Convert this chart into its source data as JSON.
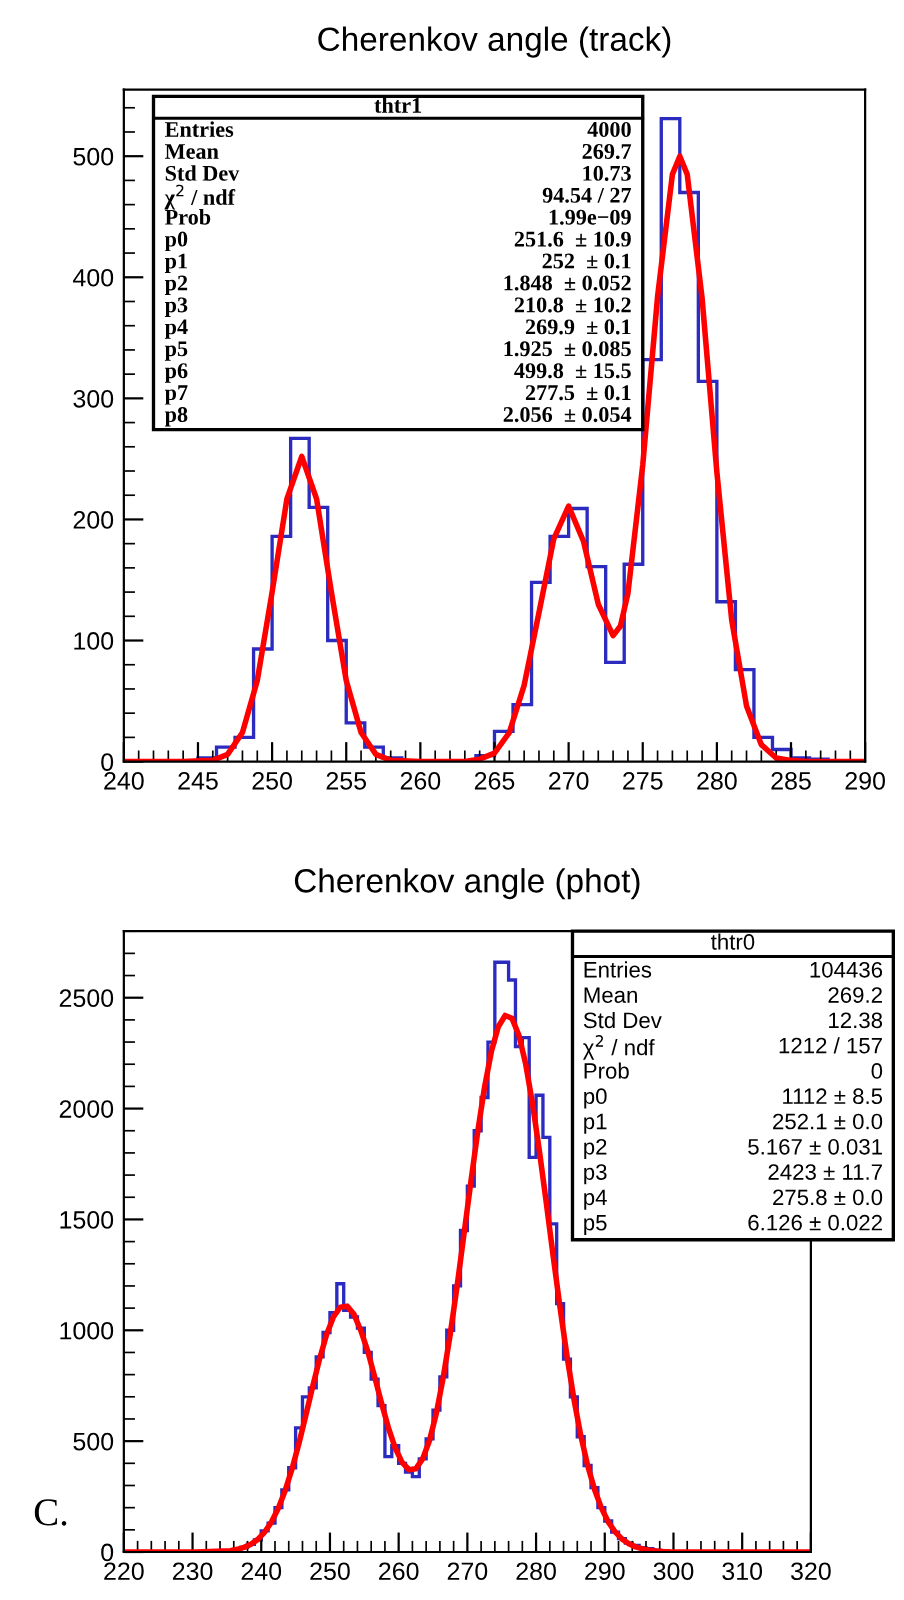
{
  "chart_data": [
    {
      "type": "histogram",
      "title": "Cherenkov angle (track)",
      "color": "#2b2bc0",
      "bins": [
        240,
        241.25,
        242.5,
        243.75,
        245,
        246.25,
        247.5,
        248.75,
        250,
        251.25,
        252.5,
        253.75,
        255,
        256.25,
        257.5,
        258.75,
        260,
        261.25,
        262.5,
        263.75,
        265,
        266.25,
        267.5,
        268.75,
        270,
        271.25,
        272.5,
        273.75,
        275,
        276.25,
        277.5,
        278.75,
        280,
        281.25,
        282.5,
        283.75,
        285,
        286.25,
        287.5,
        288.75,
        290
      ],
      "values": [
        0,
        0,
        0,
        0,
        3,
        12,
        20,
        93,
        186,
        267,
        210,
        100,
        32,
        12,
        3,
        0,
        0,
        0,
        0,
        5,
        25,
        47,
        148,
        186,
        209,
        161,
        82,
        163,
        332,
        531,
        470,
        314,
        132,
        76,
        20,
        10,
        3,
        2,
        0,
        0
      ],
      "series": [
        {
          "type": "line",
          "color": "#ff0000",
          "x": [
            240,
            244,
            246,
            247,
            248,
            249,
            250,
            251,
            252,
            253,
            254,
            255,
            256,
            257,
            258,
            260,
            262,
            263,
            264,
            265,
            266,
            267,
            268,
            269,
            270,
            271,
            272,
            273,
            273.5,
            274,
            275,
            276,
            277,
            277.5,
            278,
            279,
            280,
            281,
            282,
            283,
            284,
            285,
            286,
            290
          ],
          "values": [
            0,
            0,
            1,
            6,
            24,
            67,
            140,
            217,
            252,
            217,
            140,
            67,
            24,
            6,
            1,
            0,
            0,
            0,
            2,
            7,
            24,
            63,
            123,
            184,
            211,
            182,
            130,
            104,
            112,
            139,
            245,
            384,
            485,
            500,
            485,
            383,
            239,
            117,
            46,
            14,
            3,
            1,
            0,
            0
          ]
        }
      ],
      "xlim": [
        240,
        290
      ],
      "xticks": [
        240,
        245,
        250,
        255,
        260,
        265,
        270,
        275,
        280,
        285,
        290
      ],
      "ylim": [
        0,
        555
      ],
      "yticks": [
        0,
        100,
        200,
        300,
        400,
        500
      ],
      "annotations": [
        "thtr1",
        "Entries",
        "4000",
        "Mean",
        "269.7",
        "Std Dev",
        "10.73",
        "χ$^{2}$ / ndf",
        "94.54 / 27",
        "Prob",
        "1.99e−09",
        "p0",
        "251.6  ± 10.9",
        "p1",
        "252  ± 0.1",
        "p2",
        "1.848  ± 0.052",
        "p3",
        "210.8  ± 10.2",
        "p4",
        "269.9  ± 0.1",
        "p5",
        "1.925  ± 0.085",
        "p6",
        "499.8  ± 15.5",
        "p7",
        "277.5  ± 0.1",
        "p8",
        "2.056  ± 0.054"
      ]
    },
    {
      "type": "histogram",
      "title": "Cherenkov angle (phot)",
      "color": "#2b2bc0",
      "bins": [
        230,
        231,
        232,
        233,
        234,
        235,
        236,
        237,
        238,
        239,
        240,
        241,
        242,
        243,
        244,
        245,
        246,
        247,
        248,
        249,
        250,
        251,
        252,
        253,
        254,
        255,
        256,
        257,
        258,
        259,
        260,
        261,
        262,
        263,
        264,
        265,
        266,
        267,
        268,
        269,
        270,
        271,
        272,
        273,
        274,
        275,
        276,
        277,
        278,
        279,
        280,
        281,
        282,
        283,
        284,
        285,
        286,
        287,
        288,
        289,
        290,
        291,
        292,
        293,
        294,
        295,
        296,
        297,
        298,
        299,
        300,
        301,
        302,
        303,
        304,
        305
      ],
      "values": [
        0,
        0,
        0,
        0,
        2,
        6,
        12,
        21,
        35,
        55,
        95,
        130,
        200,
        280,
        380,
        560,
        700,
        740,
        880,
        990,
        1080,
        1210,
        1090,
        1060,
        1010,
        900,
        780,
        660,
        430,
        480,
        400,
        360,
        340,
        420,
        510,
        640,
        790,
        1000,
        1200,
        1450,
        1650,
        1900,
        2050,
        2300,
        2660,
        2660,
        2580,
        2280,
        2320,
        1780,
        2060,
        1870,
        1480,
        1120,
        870,
        700,
        520,
        390,
        290,
        200,
        140,
        90,
        60,
        40,
        30,
        20,
        15,
        8,
        5,
        3,
        2,
        1,
        0,
        0,
        0
      ],
      "series": [
        {
          "type": "line",
          "color": "#ff0000",
          "x": [
            220,
            230.5,
            235.5,
            236.5,
            237.5,
            238.5,
            239.5,
            240.5,
            241.5,
            242.5,
            243.5,
            244.5,
            245.5,
            246.5,
            247.5,
            248.5,
            249.5,
            250.5,
            251.5,
            252.5,
            253.5,
            254.5,
            255.5,
            256.5,
            257.5,
            258.5,
            259.5,
            260.5,
            261.5,
            262.5,
            263.5,
            264.5,
            265.5,
            266.5,
            267.5,
            268.5,
            269.5,
            270.5,
            271.5,
            272.5,
            273.5,
            274.5,
            275.5,
            276.5,
            277.5,
            278.5,
            279.5,
            280.5,
            281.5,
            282.5,
            283.5,
            284.5,
            285.5,
            286.5,
            287.5,
            288.5,
            289.5,
            290.5,
            291.5,
            292.5,
            293.5,
            294.5,
            295.5,
            296.5,
            297.5,
            298.5,
            299.5,
            320
          ],
          "values": [
            0,
            0,
            6,
            12,
            21,
            35,
            57,
            90,
            136,
            198,
            279,
            377,
            492,
            618,
            748,
            872,
            980,
            1060,
            1104,
            1109,
            1072,
            998,
            906,
            791,
            672,
            561,
            469,
            404,
            371,
            375,
            421,
            504,
            628,
            789,
            981,
            1198,
            1432,
            1667,
            1894,
            2096,
            2258,
            2369,
            2420,
            2407,
            2331,
            2199,
            2019,
            1805,
            1572,
            1332,
            1100,
            884,
            691,
            527,
            391,
            283,
            199,
            136,
            91,
            59,
            37,
            23,
            14,
            8,
            4,
            2,
            1,
            0
          ]
        }
      ],
      "xlim": [
        220,
        320
      ],
      "xticks": [
        220,
        230,
        240,
        250,
        260,
        270,
        280,
        290,
        300,
        310,
        320
      ],
      "ylim": [
        0,
        2800
      ],
      "yticks": [
        0,
        500,
        1000,
        1500,
        2000,
        2500
      ],
      "annotations": [
        "thtr0",
        "Entries",
        "104436",
        "Mean",
        "269.2",
        "Std Dev",
        "12.38",
        "χ$^{2}$ / ndf",
        "1212 / 157",
        "Prob",
        "0",
        "p0",
        "1112 ± 8.5",
        "p1",
        "252.1 ± 0.0",
        "p2",
        "5.167 ± 0.031",
        "p3",
        "2423 ± 11.7",
        "p4",
        "275.8 ± 0.0",
        "p5",
        "6.126 ± 0.022",
        "C."
      ]
    }
  ]
}
